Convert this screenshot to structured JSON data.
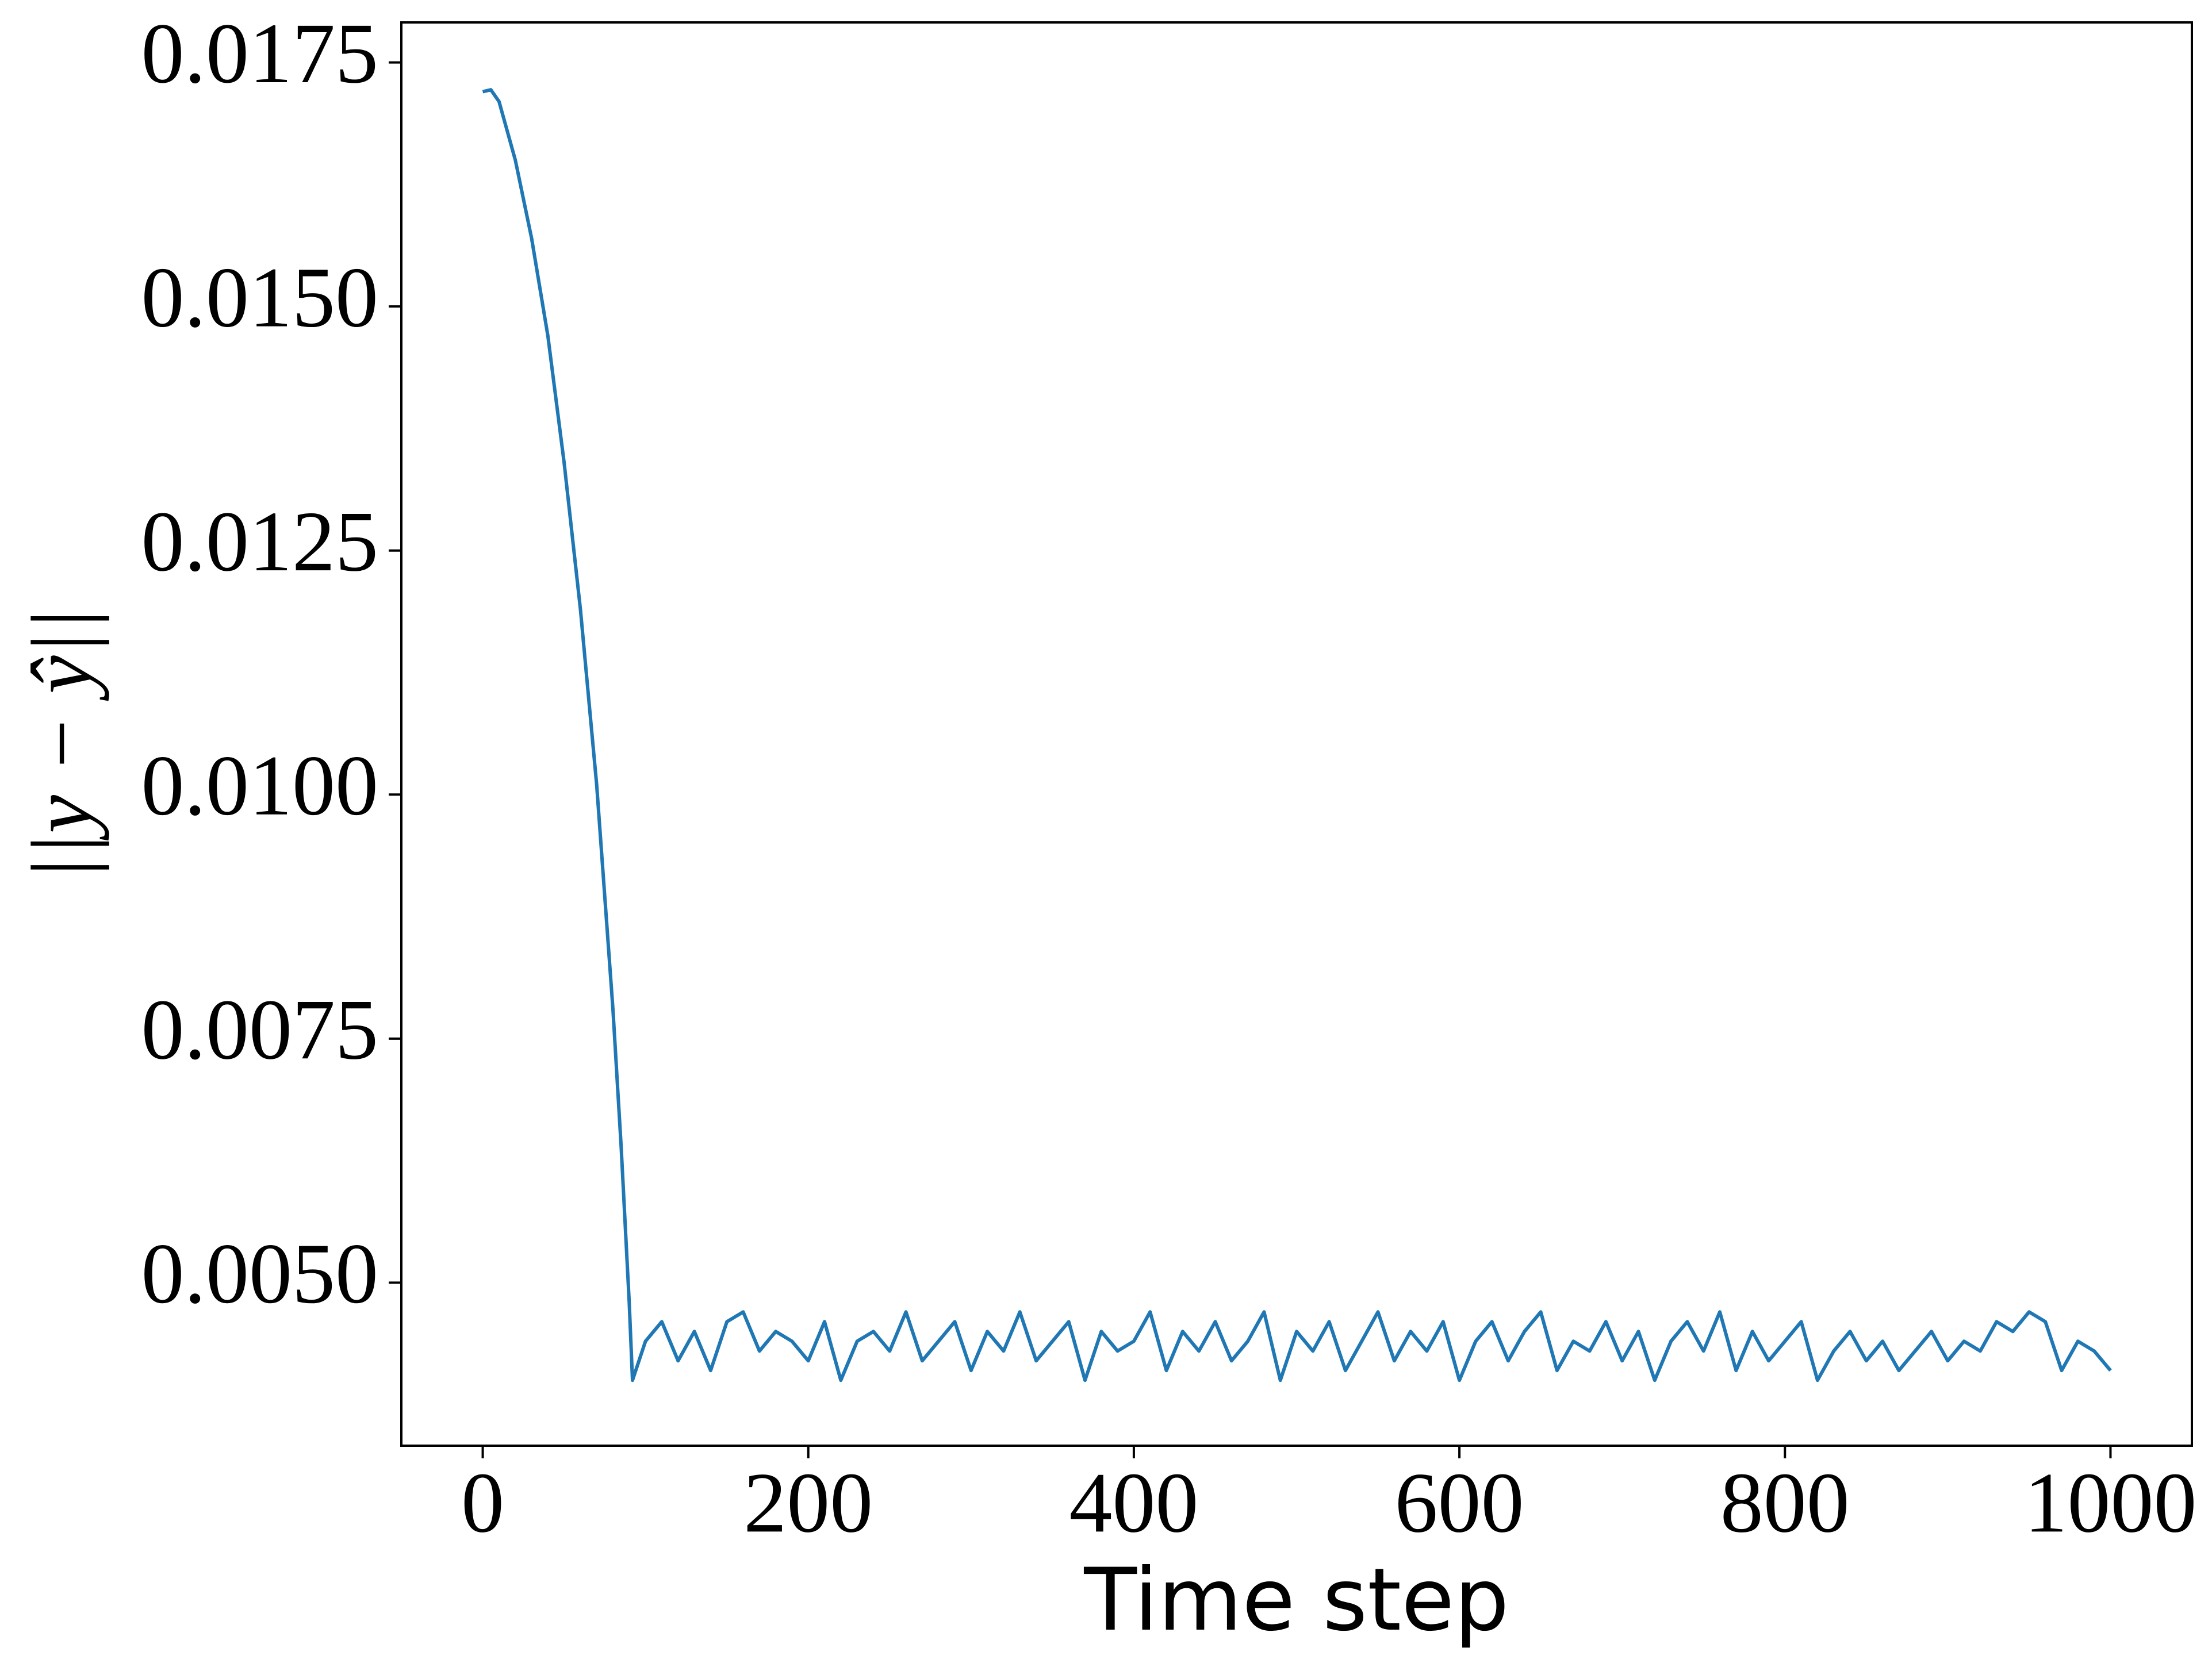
{
  "chart_data": {
    "type": "line",
    "xlabel": "Time step",
    "ylabel": "||y − ŷ||",
    "x": [
      0,
      5,
      10,
      20,
      30,
      40,
      50,
      60,
      70,
      80,
      85,
      90,
      92,
      100,
      110,
      120,
      130,
      140,
      150,
      160,
      170,
      180,
      190,
      200,
      210,
      220,
      230,
      240,
      250,
      260,
      270,
      280,
      290,
      300,
      310,
      320,
      330,
      340,
      350,
      360,
      370,
      380,
      390,
      400,
      410,
      420,
      430,
      440,
      450,
      460,
      470,
      480,
      490,
      500,
      510,
      520,
      530,
      540,
      550,
      560,
      570,
      580,
      590,
      600,
      610,
      620,
      630,
      640,
      650,
      660,
      670,
      680,
      690,
      700,
      710,
      720,
      730,
      740,
      750,
      760,
      770,
      780,
      790,
      800,
      810,
      820,
      830,
      840,
      850,
      860,
      870,
      880,
      890,
      900,
      910,
      920,
      930,
      940,
      950,
      960,
      970,
      980,
      990,
      1000
    ],
    "series": [
      {
        "color": "#1f77b4",
        "values": [
          0.0172,
          0.01722,
          0.0171,
          0.0165,
          0.0157,
          0.0147,
          0.0134,
          0.0119,
          0.0101,
          0.0078,
          0.0064,
          0.0048,
          0.004,
          0.0044,
          0.0046,
          0.0042,
          0.0045,
          0.0041,
          0.0046,
          0.0047,
          0.0043,
          0.0045,
          0.0044,
          0.0042,
          0.0046,
          0.004,
          0.0044,
          0.0045,
          0.0043,
          0.0047,
          0.0042,
          0.0044,
          0.0046,
          0.0041,
          0.0045,
          0.0043,
          0.0047,
          0.0042,
          0.0044,
          0.0046,
          0.004,
          0.0045,
          0.0043,
          0.0044,
          0.0047,
          0.0041,
          0.0045,
          0.0043,
          0.0046,
          0.0042,
          0.0044,
          0.0047,
          0.004,
          0.0045,
          0.0043,
          0.0046,
          0.0041,
          0.0044,
          0.0047,
          0.0042,
          0.0045,
          0.0043,
          0.0046,
          0.004,
          0.0044,
          0.0046,
          0.0042,
          0.0045,
          0.0047,
          0.0041,
          0.0044,
          0.0043,
          0.0046,
          0.0042,
          0.0045,
          0.004,
          0.0044,
          0.0046,
          0.0043,
          0.0047,
          0.0041,
          0.0045,
          0.0042,
          0.0044,
          0.0046,
          0.004,
          0.0043,
          0.0045,
          0.0042,
          0.0044,
          0.0041,
          0.0043,
          0.0045,
          0.0042,
          0.0044,
          0.0043,
          0.0046,
          0.0045,
          0.0047,
          0.0046,
          0.0041,
          0.0044,
          0.0043,
          0.0041
        ]
      }
    ],
    "xlim": [
      -50,
      1050
    ],
    "xticks": [
      0,
      200,
      400,
      600,
      800,
      1000
    ],
    "ylim": [
      0.00333,
      0.01791
    ],
    "yticks": [
      {
        "value": 0.005,
        "label": "0.0050"
      },
      {
        "value": 0.0075,
        "label": "0.0075"
      },
      {
        "value": 0.01,
        "label": "0.0100"
      },
      {
        "value": 0.0125,
        "label": "0.0125"
      },
      {
        "value": 0.015,
        "label": "0.0150"
      },
      {
        "value": 0.0175,
        "label": "0.0175"
      }
    ],
    "grid": false
  }
}
